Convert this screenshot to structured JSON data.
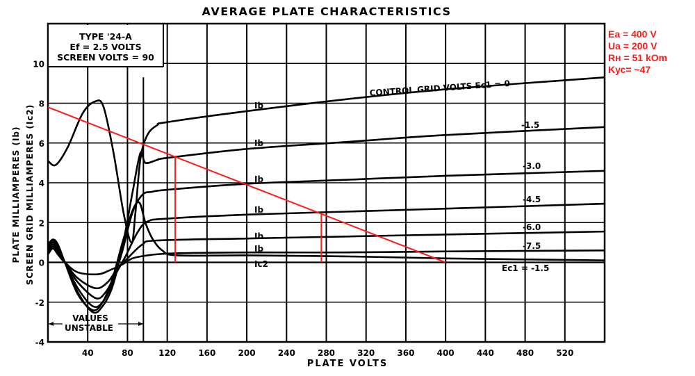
{
  "chart_data": {
    "type": "line",
    "title": "AVERAGE PLATE CHARACTERISTICS",
    "xlabel": "PLATE VOLTS",
    "ylabel_plate": "PLATE MILLIAMPERES (Ib)",
    "ylabel_screen": "SCREEN GRID MILLIAMPERES (Ic2)",
    "xlim": [
      0,
      560
    ],
    "ylim": [
      -4,
      12
    ],
    "grid": true,
    "x_ticks": [
      40,
      80,
      120,
      160,
      200,
      240,
      280,
      320,
      360,
      400,
      440,
      480,
      520
    ],
    "y_ticks": [
      -4,
      -2,
      0,
      2,
      4,
      6,
      8,
      10
    ],
    "info_box": [
      "TYPE '24-A",
      "Ef = 2.5 VOLTS",
      "SCREEN VOLTS = 90"
    ],
    "unstable_label": [
      "VALUES",
      "UNSTABLE"
    ],
    "unstable_range": [
      0,
      96
    ],
    "curve_label_ib": "Ib",
    "curve_label_ic2": "Ic2",
    "series": [
      {
        "name": "Ec1 = 0",
        "label": "CONTROL GRID VOLTS Ec1 = 0",
        "points": [
          [
            0,
            5.1
          ],
          [
            8,
            4.9
          ],
          [
            20,
            5.8
          ],
          [
            35,
            7.5
          ],
          [
            48,
            8.1
          ],
          [
            56,
            7.8
          ],
          [
            66,
            5.5
          ],
          [
            76,
            2.5
          ],
          [
            84,
            1.0
          ],
          [
            88,
            2.5
          ],
          [
            93,
            5.2
          ],
          [
            100,
            6.4
          ],
          [
            110,
            6.9
          ],
          [
            120,
            7.05
          ],
          [
            200,
            7.6
          ],
          [
            300,
            8.2
          ],
          [
            400,
            8.7
          ],
          [
            560,
            9.3
          ]
        ]
      },
      {
        "name": "Ec1 = -1.5",
        "label": "-1.5",
        "points": [
          [
            0,
            0.8
          ],
          [
            5,
            1.1
          ],
          [
            10,
            0.8
          ],
          [
            17,
            0
          ],
          [
            30,
            -1.5
          ],
          [
            45,
            -2.5
          ],
          [
            55,
            -2.2
          ],
          [
            65,
            -1.2
          ],
          [
            75,
            0.8
          ],
          [
            85,
            3.5
          ],
          [
            93,
            5.5
          ],
          [
            98,
            5.0
          ],
          [
            110,
            5.15
          ],
          [
            120,
            5.25
          ],
          [
            200,
            5.7
          ],
          [
            300,
            6.05
          ],
          [
            400,
            6.4
          ],
          [
            560,
            6.8
          ]
        ]
      },
      {
        "name": "Ec1 = -3.0",
        "label": "-3.0",
        "points": [
          [
            0,
            0.7
          ],
          [
            5,
            1.0
          ],
          [
            10,
            0.7
          ],
          [
            17,
            0
          ],
          [
            30,
            -1.3
          ],
          [
            45,
            -2.2
          ],
          [
            55,
            -2.0
          ],
          [
            65,
            -1.0
          ],
          [
            75,
            0.6
          ],
          [
            85,
            2.5
          ],
          [
            95,
            3.4
          ],
          [
            105,
            3.55
          ],
          [
            120,
            3.65
          ],
          [
            200,
            3.95
          ],
          [
            300,
            4.15
          ],
          [
            400,
            4.35
          ],
          [
            560,
            4.6
          ]
        ]
      },
      {
        "name": "Ec1 = -4.5",
        "label": "-4.5",
        "points": [
          [
            0,
            0.6
          ],
          [
            5,
            0.9
          ],
          [
            10,
            0.6
          ],
          [
            17,
            0
          ],
          [
            30,
            -1.0
          ],
          [
            48,
            -1.8
          ],
          [
            58,
            -1.5
          ],
          [
            68,
            -0.6
          ],
          [
            78,
            0.3
          ],
          [
            90,
            1.5
          ],
          [
            100,
            2.05
          ],
          [
            120,
            2.2
          ],
          [
            200,
            2.4
          ],
          [
            300,
            2.55
          ],
          [
            400,
            2.7
          ],
          [
            560,
            2.95
          ]
        ]
      },
      {
        "name": "Ec1 = -6.0",
        "label": "-6.0",
        "points": [
          [
            0,
            0.5
          ],
          [
            5,
            0.8
          ],
          [
            10,
            0.5
          ],
          [
            17,
            0
          ],
          [
            30,
            -0.8
          ],
          [
            48,
            -1.3
          ],
          [
            60,
            -1.0
          ],
          [
            70,
            -0.3
          ],
          [
            80,
            0.2
          ],
          [
            95,
            0.9
          ],
          [
            110,
            1.1
          ],
          [
            200,
            1.2
          ],
          [
            300,
            1.3
          ],
          [
            400,
            1.4
          ],
          [
            560,
            1.55
          ]
        ]
      },
      {
        "name": "Ec1 = -7.5",
        "label": "-7.5",
        "points": [
          [
            0,
            0.4
          ],
          [
            5,
            0.7
          ],
          [
            10,
            0.4
          ],
          [
            17,
            0
          ],
          [
            30,
            -0.5
          ],
          [
            50,
            -0.6
          ],
          [
            62,
            -0.4
          ],
          [
            75,
            -0.1
          ],
          [
            85,
            0.2
          ],
          [
            100,
            0.35
          ],
          [
            125,
            0.45
          ],
          [
            200,
            0.5
          ],
          [
            300,
            0.5
          ],
          [
            400,
            0.55
          ],
          [
            560,
            0.6
          ]
        ]
      },
      {
        "name": "Ic2 (Ec1 = -1.5)",
        "label": "Ec1 = -1.5",
        "points": [
          [
            0,
            0.9
          ],
          [
            5,
            1.15
          ],
          [
            10,
            0.9
          ],
          [
            17,
            0
          ],
          [
            30,
            -1.6
          ],
          [
            45,
            -2.4
          ],
          [
            55,
            -2.0
          ],
          [
            65,
            -0.8
          ],
          [
            75,
            1.0
          ],
          [
            85,
            2.6
          ],
          [
            92,
            3.0
          ],
          [
            98,
            2.0
          ],
          [
            105,
            1.2
          ],
          [
            115,
            0.6
          ],
          [
            130,
            0.35
          ],
          [
            200,
            0.35
          ],
          [
            300,
            0.3
          ],
          [
            400,
            0.2
          ],
          [
            560,
            0.1
          ]
        ]
      }
    ],
    "load_line": {
      "points": [
        [
          0,
          7.8
        ],
        [
          400,
          0
        ]
      ],
      "color": "#ff1a1a"
    },
    "operating_markers": [
      {
        "x": 128,
        "y_top": 5.35
      },
      {
        "x": 275,
        "y_top": 2.5
      }
    ],
    "annotations": [
      "Ea = 400 V",
      "Ua = 200 V",
      "Rн = 51 kOm",
      "Kус= ~47"
    ],
    "annotation_color": "#ff1a1a"
  }
}
